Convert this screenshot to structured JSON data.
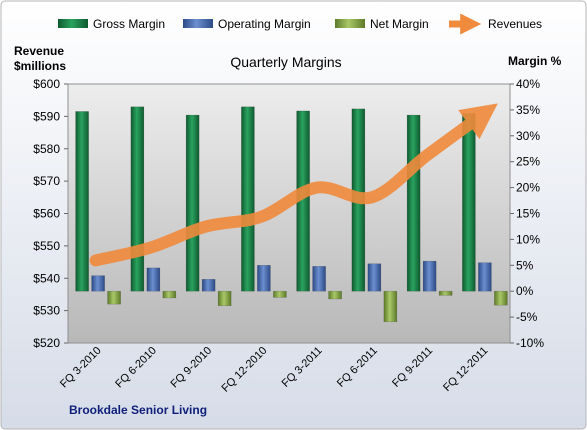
{
  "chart_data": {
    "type": "bar",
    "title": "Quarterly Margins",
    "footer": "Brookdale Senior Living",
    "left_axis_title": [
      "Revenue",
      "$millions"
    ],
    "right_axis_title": "Margin %",
    "categories": [
      "FQ 3-2010",
      "FQ 6-2010",
      "FQ 9-2010",
      "FQ 12-2010",
      "FQ 3-2011",
      "FQ 6-2011",
      "FQ 9-2011",
      "FQ 12-2011"
    ],
    "left_axis": {
      "min": 520,
      "max": 600,
      "step": 10,
      "prefix": "$"
    },
    "right_axis": {
      "min": -10,
      "max": 40,
      "step": 5,
      "suffix": "%"
    },
    "legend_position": "top",
    "grid": false,
    "series": [
      {
        "name": "Gross Margin",
        "type": "bar",
        "axis": "right",
        "color": "#1e8a4e",
        "values": [
          34.7,
          35.6,
          34.0,
          35.6,
          34.8,
          35.2,
          34.0,
          34.3
        ]
      },
      {
        "name": "Operating Margin",
        "type": "bar",
        "axis": "right",
        "color": "#4a6fb5",
        "values": [
          3.0,
          4.5,
          2.3,
          5.0,
          4.8,
          5.3,
          5.8,
          5.5
        ]
      },
      {
        "name": "Net Margin",
        "type": "bar",
        "axis": "right",
        "color": "#8cb04a",
        "values": [
          -2.5,
          -1.3,
          -2.8,
          -1.2,
          -1.5,
          -5.9,
          -0.8,
          -2.7
        ]
      },
      {
        "name": "Revenues",
        "type": "line",
        "axis": "left",
        "color": "#f08a3c",
        "values": [
          545.5,
          549.5,
          556.0,
          559.0,
          568.0,
          565.0,
          578.0,
          590.5
        ]
      }
    ]
  }
}
